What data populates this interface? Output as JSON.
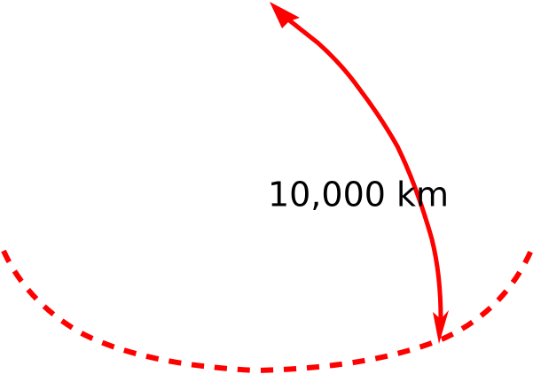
{
  "label": "10,000 km"
}
